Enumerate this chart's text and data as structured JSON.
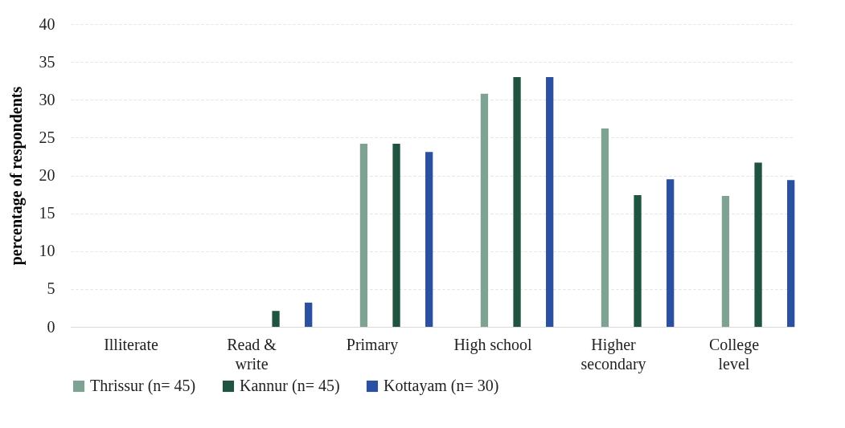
{
  "chart_data": {
    "type": "bar",
    "ylabel": "percentage of respondents",
    "categories": [
      "Illiterate",
      "Read & write",
      "Primary",
      "High school",
      "Higher secondary",
      "College level"
    ],
    "series": [
      {
        "name": "Thrissur (n= 45)",
        "color": "#7fa393",
        "values": [
          0,
          0,
          24.2,
          30.8,
          26.2,
          17.3
        ]
      },
      {
        "name": "Kannur (n= 45)",
        "color": "#1f5540",
        "values": [
          0,
          2.1,
          24.2,
          33.0,
          17.4,
          21.7
        ]
      },
      {
        "name": "Kottayam (n= 30)",
        "color": "#2b50a0",
        "values": [
          0,
          3.2,
          23.1,
          33.0,
          19.5,
          19.4
        ]
      }
    ],
    "ylim": [
      0,
      40
    ],
    "yticks": [
      0,
      5,
      10,
      15,
      20,
      25,
      30,
      35,
      40
    ],
    "grid": "y",
    "legend": "bottom"
  }
}
